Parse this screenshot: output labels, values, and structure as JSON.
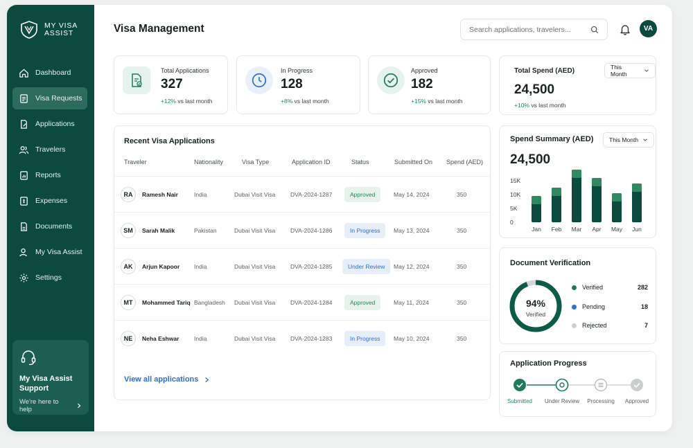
{
  "brand": {
    "line1": "MY VISA",
    "line2": "ASSIST"
  },
  "sidebar": {
    "items": [
      {
        "label": "Dashboard",
        "icon": "home-icon"
      },
      {
        "label": "Visa Requests",
        "icon": "document-icon",
        "active": true
      },
      {
        "label": "Applications",
        "icon": "edit-document-icon"
      },
      {
        "label": "Travelers",
        "icon": "users-icon"
      },
      {
        "label": "Reports",
        "icon": "report-icon"
      },
      {
        "label": "Expenses",
        "icon": "expense-icon"
      },
      {
        "label": "Documents",
        "icon": "folder-icon"
      },
      {
        "label": "My Visa Assist",
        "icon": "user-icon"
      },
      {
        "label": "Settings",
        "icon": "gear-icon"
      }
    ],
    "support": {
      "title": "My Visa Assist Support",
      "subtitle": "We're here to help"
    }
  },
  "header": {
    "title": "Visa Management",
    "search_placeholder": "Search applications, travelers...",
    "avatar_initials": "VA"
  },
  "stats": [
    {
      "label": "Total Applications",
      "value": "327",
      "trend": "+12%",
      "trend_text": "vs last month"
    },
    {
      "label": "In Progress",
      "value": "128",
      "trend": "+8%",
      "trend_text": "vs last month"
    },
    {
      "label": "Approved",
      "value": "182",
      "trend": "+15%",
      "trend_text": "vs last month"
    }
  ],
  "total_spend": {
    "label": "Total Spend (AED)",
    "value": "24,500",
    "trend": "+10%",
    "trend_text": "vs last month",
    "period": "This Month"
  },
  "recent": {
    "title": "Recent Visa Applications",
    "columns": [
      "Traveler",
      "Nationality",
      "Visa Type",
      "Application ID",
      "Status",
      "Submitted On",
      "Spend (AED)"
    ],
    "rows": [
      {
        "initials": "RA",
        "name": "Ramesh Nair",
        "nationality": "India",
        "visa_type": "Dubai Visit Visa",
        "app_id": "DVA-2024-1287",
        "status": "Approved",
        "status_kind": "approved",
        "submitted": "May 14, 2024",
        "spend": "350"
      },
      {
        "initials": "SM",
        "name": "Sarah Malik",
        "nationality": "Pakistan",
        "visa_type": "Dubai Visit Visa",
        "app_id": "DVA-2024-1286",
        "status": "In Progress",
        "status_kind": "progress",
        "submitted": "May 13, 2024",
        "spend": "350"
      },
      {
        "initials": "AK",
        "name": "Arjun Kapoor",
        "nationality": "India",
        "visa_type": "Dubai Visit Visa",
        "app_id": "DVA-2024-1285",
        "status": "Under Review",
        "status_kind": "review",
        "submitted": "May 12, 2024",
        "spend": "350"
      },
      {
        "initials": "MT",
        "name": "Mohammed Tariq",
        "nationality": "Bangladesh",
        "visa_type": "Dubai Visit Visa",
        "app_id": "DVA-2024-1284",
        "status": "Approved",
        "status_kind": "approved",
        "submitted": "May 11, 2024",
        "spend": "350"
      },
      {
        "initials": "NE",
        "name": "Neha Eshwar",
        "nationality": "India",
        "visa_type": "Dubai Visit Visa",
        "app_id": "DVA-2024-1283",
        "status": "In Progress",
        "status_kind": "progress",
        "submitted": "May 10, 2024",
        "spend": "350"
      }
    ],
    "view_all": "View all applications"
  },
  "spend_summary": {
    "title": "Spend Summary (AED)",
    "value": "24,500",
    "period": "This Month"
  },
  "chart_data": {
    "type": "bar",
    "title": "Spend Summary (AED)",
    "categories": [
      "Jan",
      "Feb",
      "Mar",
      "Apr",
      "May",
      "Jun"
    ],
    "series": [
      {
        "values": [
          9500,
          12500,
          19000,
          16000,
          10500,
          14000
        ]
      }
    ],
    "ylim": [
      0,
      20000
    ],
    "yticks": [
      "0",
      "5K",
      "10K",
      "15K"
    ],
    "ytick_values": [
      0,
      5000,
      10000,
      15000
    ],
    "colors": {
      "bar_top": "#2f8a63",
      "bar_bottom": "#0c4a3f"
    }
  },
  "verification": {
    "title": "Document Verification",
    "percent": 94,
    "percent_label": "94%",
    "center_label": "Verified",
    "legend": [
      {
        "label": "Verified",
        "value": "282",
        "color": "#1f7a57"
      },
      {
        "label": "Pending",
        "value": "18",
        "color": "#2f6fd0"
      },
      {
        "label": "Rejected",
        "value": "7",
        "color": "#c9cfcd"
      }
    ]
  },
  "progress": {
    "title": "Application Progress",
    "steps": [
      {
        "label": "Submitted",
        "state": "done"
      },
      {
        "label": "Under Review",
        "state": "current"
      },
      {
        "label": "Processing",
        "state": "pending"
      },
      {
        "label": "Approved",
        "state": "pending"
      }
    ]
  },
  "colors": {
    "primary": "#0c4a3f",
    "accent_green": "#1f8a57",
    "accent_blue": "#2f6fd0"
  }
}
